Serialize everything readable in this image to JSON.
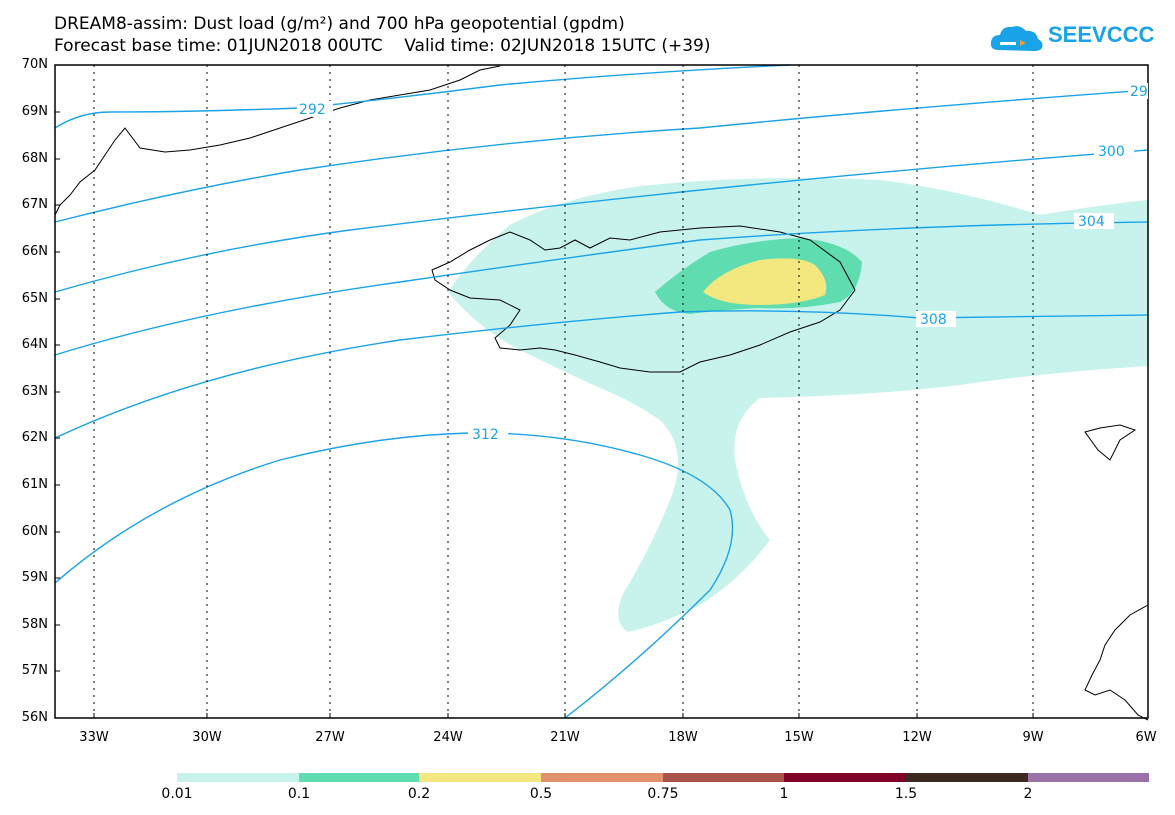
{
  "title_line1": "DREAM8-assim: Dust load (g/m²) and 700 hPa geopotential (gpdm)",
  "title_line2": "Forecast base time: 01JUN2018 00UTC    Valid time: 02JUN2018 15UTC (+39)",
  "logo": {
    "text": "SEEVCCC",
    "icon": "cloud-logo-icon",
    "color": "#1aa3e8"
  },
  "lat_labels": [
    "70N",
    "69N",
    "68N",
    "67N",
    "66N",
    "65N",
    "64N",
    "63N",
    "62N",
    "61N",
    "60N",
    "59N",
    "58N",
    "57N",
    "56N"
  ],
  "lon_labels": [
    "33W",
    "30W",
    "27W",
    "24W",
    "21W",
    "18W",
    "15W",
    "12W",
    "9W",
    "6W"
  ],
  "contour_labels": [
    "292",
    "29",
    "300",
    "304",
    "308",
    "312"
  ],
  "colorbar": {
    "labels": [
      "0.01",
      "0.1",
      "0.2",
      "0.5",
      "0.75",
      "1",
      "1.5",
      "2"
    ],
    "colors": [
      "#c8f3ec",
      "#5fdcb0",
      "#f2e87f",
      "#e0906a",
      "#a8524a",
      "#800028",
      "#3c2a22",
      "#9b72a8"
    ]
  },
  "dust_colors": {
    "light": "#c8f3ec",
    "medium": "#5fdcb0",
    "high": "#f2e87f"
  },
  "contour_color": "#1aa3e8"
}
